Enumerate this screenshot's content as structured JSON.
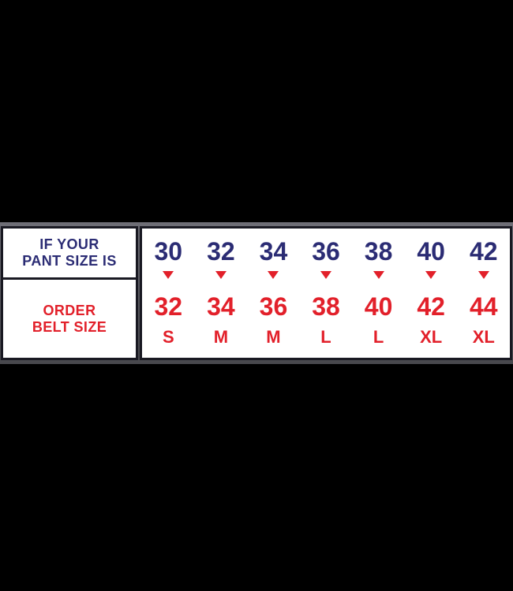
{
  "colors": {
    "background": "#000000",
    "table_bg": "#ffffff",
    "border": "#191922",
    "navy_text": "#2b2c74",
    "red_text": "#e2202a",
    "edge_strip_gray": "#5c5c63"
  },
  "left_header": {
    "line1": "IF YOUR",
    "line2": "PANT SIZE IS"
  },
  "left_order": {
    "line1": "ORDER",
    "line2": "BELT SIZE"
  },
  "columns": [
    {
      "pant": "30",
      "belt": "32",
      "letter": "S"
    },
    {
      "pant": "32",
      "belt": "34",
      "letter": "M"
    },
    {
      "pant": "34",
      "belt": "36",
      "letter": "M"
    },
    {
      "pant": "36",
      "belt": "38",
      "letter": "L"
    },
    {
      "pant": "38",
      "belt": "40",
      "letter": "L"
    },
    {
      "pant": "40",
      "belt": "42",
      "letter": "XL"
    },
    {
      "pant": "42",
      "belt": "44",
      "letter": "XL"
    }
  ],
  "chart_data": {
    "type": "table",
    "title": "Belt size conversion chart",
    "row_headers": [
      "IF YOUR PANT SIZE IS",
      "ORDER BELT SIZE"
    ],
    "pant_sizes": [
      30,
      32,
      34,
      36,
      38,
      40,
      42
    ],
    "belt_sizes": [
      32,
      34,
      36,
      38,
      40,
      42,
      44
    ],
    "letter_sizes": [
      "S",
      "M",
      "M",
      "L",
      "L",
      "XL",
      "XL"
    ],
    "layout_hints": {
      "background": "black",
      "table_background": "white",
      "pant_size_color": "navy",
      "belt_size_color": "red",
      "arrow_between_rows": "red downward triangle"
    }
  }
}
